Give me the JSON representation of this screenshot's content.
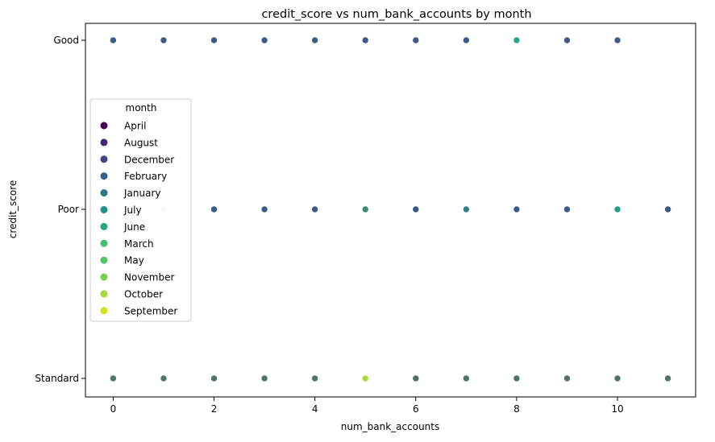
{
  "chart_data": {
    "type": "scatter",
    "title": "credit_score vs num_bank_accounts by month",
    "xlabel": "num_bank_accounts",
    "ylabel": "credit_score",
    "xlim": [
      -0.55,
      11.55
    ],
    "x_ticks": [
      0,
      2,
      4,
      6,
      8,
      10
    ],
    "categories_y": [
      "Good",
      "Poor",
      "Standard"
    ],
    "grid": false,
    "legend": {
      "title": "month",
      "placement": "center-left",
      "entries": [
        {
          "name": "April",
          "color": "#440154"
        },
        {
          "name": "August",
          "color": "#482576"
        },
        {
          "name": "December",
          "color": "#414487"
        },
        {
          "name": "February",
          "color": "#35608d"
        },
        {
          "name": "January",
          "color": "#2a788e"
        },
        {
          "name": "July",
          "color": "#21918c"
        },
        {
          "name": "June",
          "color": "#22a884"
        },
        {
          "name": "March",
          "color": "#43bf71"
        },
        {
          "name": "May",
          "color": "#54c568"
        },
        {
          "name": "November",
          "color": "#7ad151"
        },
        {
          "name": "October",
          "color": "#a5db36"
        },
        {
          "name": "September",
          "color": "#d2e21b"
        }
      ]
    },
    "points": [
      {
        "x": 0,
        "y": "Good",
        "color": "#3b5a88"
      },
      {
        "x": 1,
        "y": "Good",
        "color": "#3b5a88"
      },
      {
        "x": 2,
        "y": "Good",
        "color": "#3b5a88"
      },
      {
        "x": 3,
        "y": "Good",
        "color": "#3b5a88"
      },
      {
        "x": 4,
        "y": "Good",
        "color": "#3b5a88"
      },
      {
        "x": 5,
        "y": "Good",
        "color": "#3b5a88"
      },
      {
        "x": 6,
        "y": "Good",
        "color": "#3b5a88"
      },
      {
        "x": 7,
        "y": "Good",
        "color": "#3b5a88"
      },
      {
        "x": 8,
        "y": "Good",
        "color": "#25a48a"
      },
      {
        "x": 9,
        "y": "Good",
        "color": "#3b5a88"
      },
      {
        "x": 10,
        "y": "Good",
        "color": "#3b5a88"
      },
      {
        "x": 0,
        "y": "Poor",
        "color": "#e1dcef"
      },
      {
        "x": 1,
        "y": "Poor",
        "color": "#d9d6ea"
      },
      {
        "x": 2,
        "y": "Poor",
        "color": "#3b5a88"
      },
      {
        "x": 3,
        "y": "Poor",
        "color": "#3b5a88"
      },
      {
        "x": 4,
        "y": "Poor",
        "color": "#3b5a88"
      },
      {
        "x": 5,
        "y": "Poor",
        "color": "#3b8a74"
      },
      {
        "x": 6,
        "y": "Poor",
        "color": "#3b5a88"
      },
      {
        "x": 7,
        "y": "Poor",
        "color": "#2e7f8c"
      },
      {
        "x": 8,
        "y": "Poor",
        "color": "#3b5a88"
      },
      {
        "x": 9,
        "y": "Poor",
        "color": "#3b5a88"
      },
      {
        "x": 10,
        "y": "Poor",
        "color": "#23998a"
      },
      {
        "x": 11,
        "y": "Poor",
        "color": "#3b5a88"
      },
      {
        "x": 0,
        "y": "Standard",
        "color": "#4e7468"
      },
      {
        "x": 1,
        "y": "Standard",
        "color": "#4e7468"
      },
      {
        "x": 2,
        "y": "Standard",
        "color": "#4e7468"
      },
      {
        "x": 3,
        "y": "Standard",
        "color": "#4e7468"
      },
      {
        "x": 4,
        "y": "Standard",
        "color": "#4e7468"
      },
      {
        "x": 5,
        "y": "Standard",
        "color": "#a8dc3a"
      },
      {
        "x": 6,
        "y": "Standard",
        "color": "#4e7468"
      },
      {
        "x": 7,
        "y": "Standard",
        "color": "#4e7468"
      },
      {
        "x": 8,
        "y": "Standard",
        "color": "#4e7468"
      },
      {
        "x": 9,
        "y": "Standard",
        "color": "#4e7468"
      },
      {
        "x": 10,
        "y": "Standard",
        "color": "#4e7468"
      },
      {
        "x": 11,
        "y": "Standard",
        "color": "#4e7468"
      }
    ]
  }
}
